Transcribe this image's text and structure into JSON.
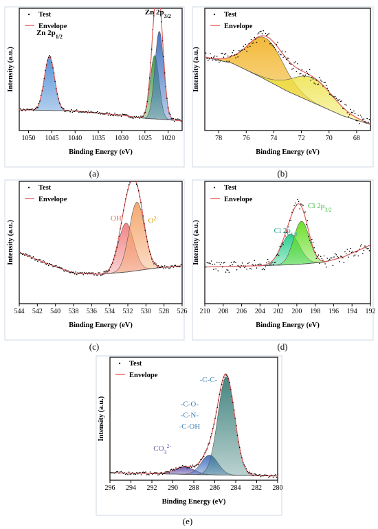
{
  "figure_labels": [
    "(a)",
    "(b)",
    "(c)",
    "(d)",
    "(e)"
  ],
  "colors": {
    "test_points": "#000000",
    "envelope": "#e05a5a",
    "background_line": "#555555"
  },
  "chart_data": [
    {
      "panel": "(a)",
      "type": "line",
      "xlabel": "Binding Energy (eV)",
      "ylabel": "Intensity (a.u.)",
      "xlim": [
        1052,
        1017
      ],
      "xticks": [
        1050,
        1045,
        1040,
        1035,
        1030,
        1025,
        1020
      ],
      "legend": [
        "Test",
        "Envelope"
      ],
      "annotations": [
        {
          "text": "Zn 2p",
          "sub": "1/2",
          "color": "#000000",
          "x": 1045.5,
          "level": 0.78
        },
        {
          "text": "Zn 2p",
          "sub": "3/2",
          "color": "#000000",
          "x": 1022.2,
          "level": 0.95
        }
      ],
      "baseline": [
        [
          1052,
          0.17
        ],
        [
          1040,
          0.16
        ],
        [
          1030,
          0.125
        ],
        [
          1025,
          0.1
        ],
        [
          1017,
          0.08
        ]
      ],
      "peaks": [
        {
          "center": 1045.5,
          "height": 0.44,
          "width": 1.1,
          "color": "#4f8fd6"
        },
        {
          "center": 1022.9,
          "height": 0.52,
          "width": 0.95,
          "color": "#3c9a3c"
        },
        {
          "center": 1021.9,
          "height": 0.72,
          "width": 0.95,
          "color": "#3f6fbf"
        }
      ]
    },
    {
      "panel": "(b)",
      "type": "line",
      "xlabel": "Binding Energy (eV)",
      "ylabel": "Intensity (a.u.)",
      "xlim": [
        79,
        67
      ],
      "xticks": [
        78,
        76,
        74,
        72,
        70,
        68
      ],
      "legend": [
        "Test",
        "Envelope"
      ],
      "annotations": [],
      "baseline": [
        [
          79,
          0.6
        ],
        [
          77,
          0.55
        ],
        [
          75,
          0.44
        ],
        [
          73,
          0.32
        ],
        [
          71,
          0.22
        ],
        [
          69,
          0.12
        ],
        [
          67,
          0.05
        ]
      ],
      "peaks": [
        {
          "center": 74.6,
          "height": 0.34,
          "width": 1.3,
          "color": "#f2b62e"
        },
        {
          "center": 71.2,
          "height": 0.2,
          "width": 1.5,
          "color": "#ece13a"
        }
      ]
    },
    {
      "panel": "(c)",
      "type": "line",
      "xlabel": "Binding Energy (eV)",
      "ylabel": "Intensity (a.u.)",
      "xlim": [
        544,
        526
      ],
      "xticks": [
        544,
        542,
        540,
        538,
        536,
        534,
        532,
        530,
        528,
        526
      ],
      "legend": [
        "Test",
        "Envelope"
      ],
      "annotations": [
        {
          "text": "OH",
          "sub": "",
          "sup": "-",
          "color": "#e0735f",
          "x": 533.2,
          "level": 0.68
        },
        {
          "text": "O",
          "sub": "",
          "sup": "2-",
          "color": "#d9a000",
          "x": 529.2,
          "level": 0.66
        }
      ],
      "baseline": [
        [
          544,
          0.42
        ],
        [
          541,
          0.33
        ],
        [
          538,
          0.25
        ],
        [
          535,
          0.24
        ],
        [
          532,
          0.26
        ],
        [
          529,
          0.29
        ],
        [
          526,
          0.31
        ]
      ],
      "peaks": [
        {
          "center": 532.2,
          "height": 0.4,
          "width": 0.85,
          "color": "#f08080"
        },
        {
          "center": 531.0,
          "height": 0.56,
          "width": 0.85,
          "color": "#f4a46a"
        }
      ]
    },
    {
      "panel": "(d)",
      "type": "line",
      "xlabel": "Binding Energy (eV)",
      "ylabel": "Intensity (a.u.)",
      "xlim": [
        210,
        192
      ],
      "xticks": [
        210,
        208,
        206,
        204,
        202,
        200,
        198,
        196,
        194,
        192
      ],
      "legend": [
        "Test",
        "Envelope"
      ],
      "annotations": [
        {
          "text": "Cl 2p",
          "sub": "1/2",
          "color": "#1aa98a",
          "x": 201.2,
          "level": 0.58
        },
        {
          "text": "Cl 2p",
          "sub": "3/2",
          "color": "#33b833",
          "x": 197.5,
          "level": 0.78
        }
      ],
      "baseline": [
        [
          210,
          0.3
        ],
        [
          204,
          0.31
        ],
        [
          200,
          0.32
        ],
        [
          197,
          0.34
        ],
        [
          195,
          0.38
        ],
        [
          192,
          0.48
        ]
      ],
      "peaks": [
        {
          "center": 200.7,
          "height": 0.25,
          "width": 1.0,
          "color": "#22cc88"
        },
        {
          "center": 199.5,
          "height": 0.35,
          "width": 0.85,
          "color": "#66dd22"
        }
      ]
    },
    {
      "panel": "(e)",
      "type": "line",
      "xlabel": "Binding Energy (eV)",
      "ylabel": "Intensity (a.u.)",
      "xlim": [
        296,
        280
      ],
      "xticks": [
        296,
        294,
        292,
        290,
        288,
        286,
        284,
        282,
        280
      ],
      "legend": [
        "Test",
        "Envelope"
      ],
      "annotations": [
        {
          "text": "CO",
          "sub": "3",
          "sup": "2-",
          "color": "#6a5ab0",
          "x": 291.0,
          "level": 0.24
        },
        {
          "text": "-C-O-",
          "sub": "",
          "color": "#3d82b8",
          "x": 288.4,
          "level": 0.6
        },
        {
          "text": "-C-N-",
          "sub": "",
          "color": "#3d82b8",
          "x": 288.4,
          "level": 0.51
        },
        {
          "text": "-C-OH",
          "sub": "",
          "color": "#3d82b8",
          "x": 288.4,
          "level": 0.42
        },
        {
          "text": "-C-C-",
          "sub": "",
          "color": "#3d82b8",
          "x": 286.6,
          "level": 0.8
        }
      ],
      "baseline": [
        [
          296,
          0.06
        ],
        [
          292,
          0.055
        ],
        [
          290,
          0.05
        ],
        [
          287,
          0.045
        ],
        [
          284,
          0.04
        ],
        [
          280,
          0.035
        ]
      ],
      "peaks": [
        {
          "center": 288.9,
          "height": 0.06,
          "width": 0.95,
          "color": "#6a5ab0"
        },
        {
          "center": 286.5,
          "height": 0.16,
          "width": 0.8,
          "color": "#3d6fc0"
        },
        {
          "center": 284.9,
          "height": 0.8,
          "width": 0.8,
          "color": "#3b7f7a"
        }
      ]
    }
  ]
}
